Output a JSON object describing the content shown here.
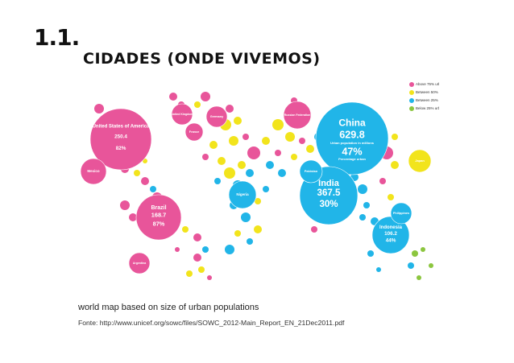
{
  "header": {
    "number": "1.1.",
    "title": "CIDADES (ONDE VIVEMOS)"
  },
  "map": {
    "legend": [
      "Above 75% urban",
      "Between 50% and 75% urban",
      "Between 25% and 50% urban",
      "Below 25% urban"
    ],
    "bubbles": [
      {
        "name": "China",
        "value": "629.8",
        "value_note": "Urban population in millions",
        "percent": "47%",
        "percent_note": "Percentage urban"
      },
      {
        "name": "India",
        "value": "367.5",
        "percent": "30%"
      },
      {
        "name": "United States of America",
        "value": "250.4",
        "percent": "82%"
      },
      {
        "name": "Brazil",
        "value": "168.7",
        "percent": "87%"
      },
      {
        "name": "Indonesia",
        "value": "106.2",
        "percent": "44%"
      },
      {
        "name": "Nigeria"
      },
      {
        "name": "Japan"
      },
      {
        "name": "Russian Federation"
      },
      {
        "name": "Mexico"
      },
      {
        "name": "Pakistan"
      },
      {
        "name": "Philippines"
      },
      {
        "name": "United Kingdom"
      },
      {
        "name": "Germany"
      },
      {
        "name": "France"
      },
      {
        "name": "Argentina"
      }
    ]
  },
  "caption": "world map based on size of urban populations",
  "source": "Fonte: http://www.unicef.org/sowc/files/SOWC_2012-Main_Report_EN_21Dec2011.pdf"
}
